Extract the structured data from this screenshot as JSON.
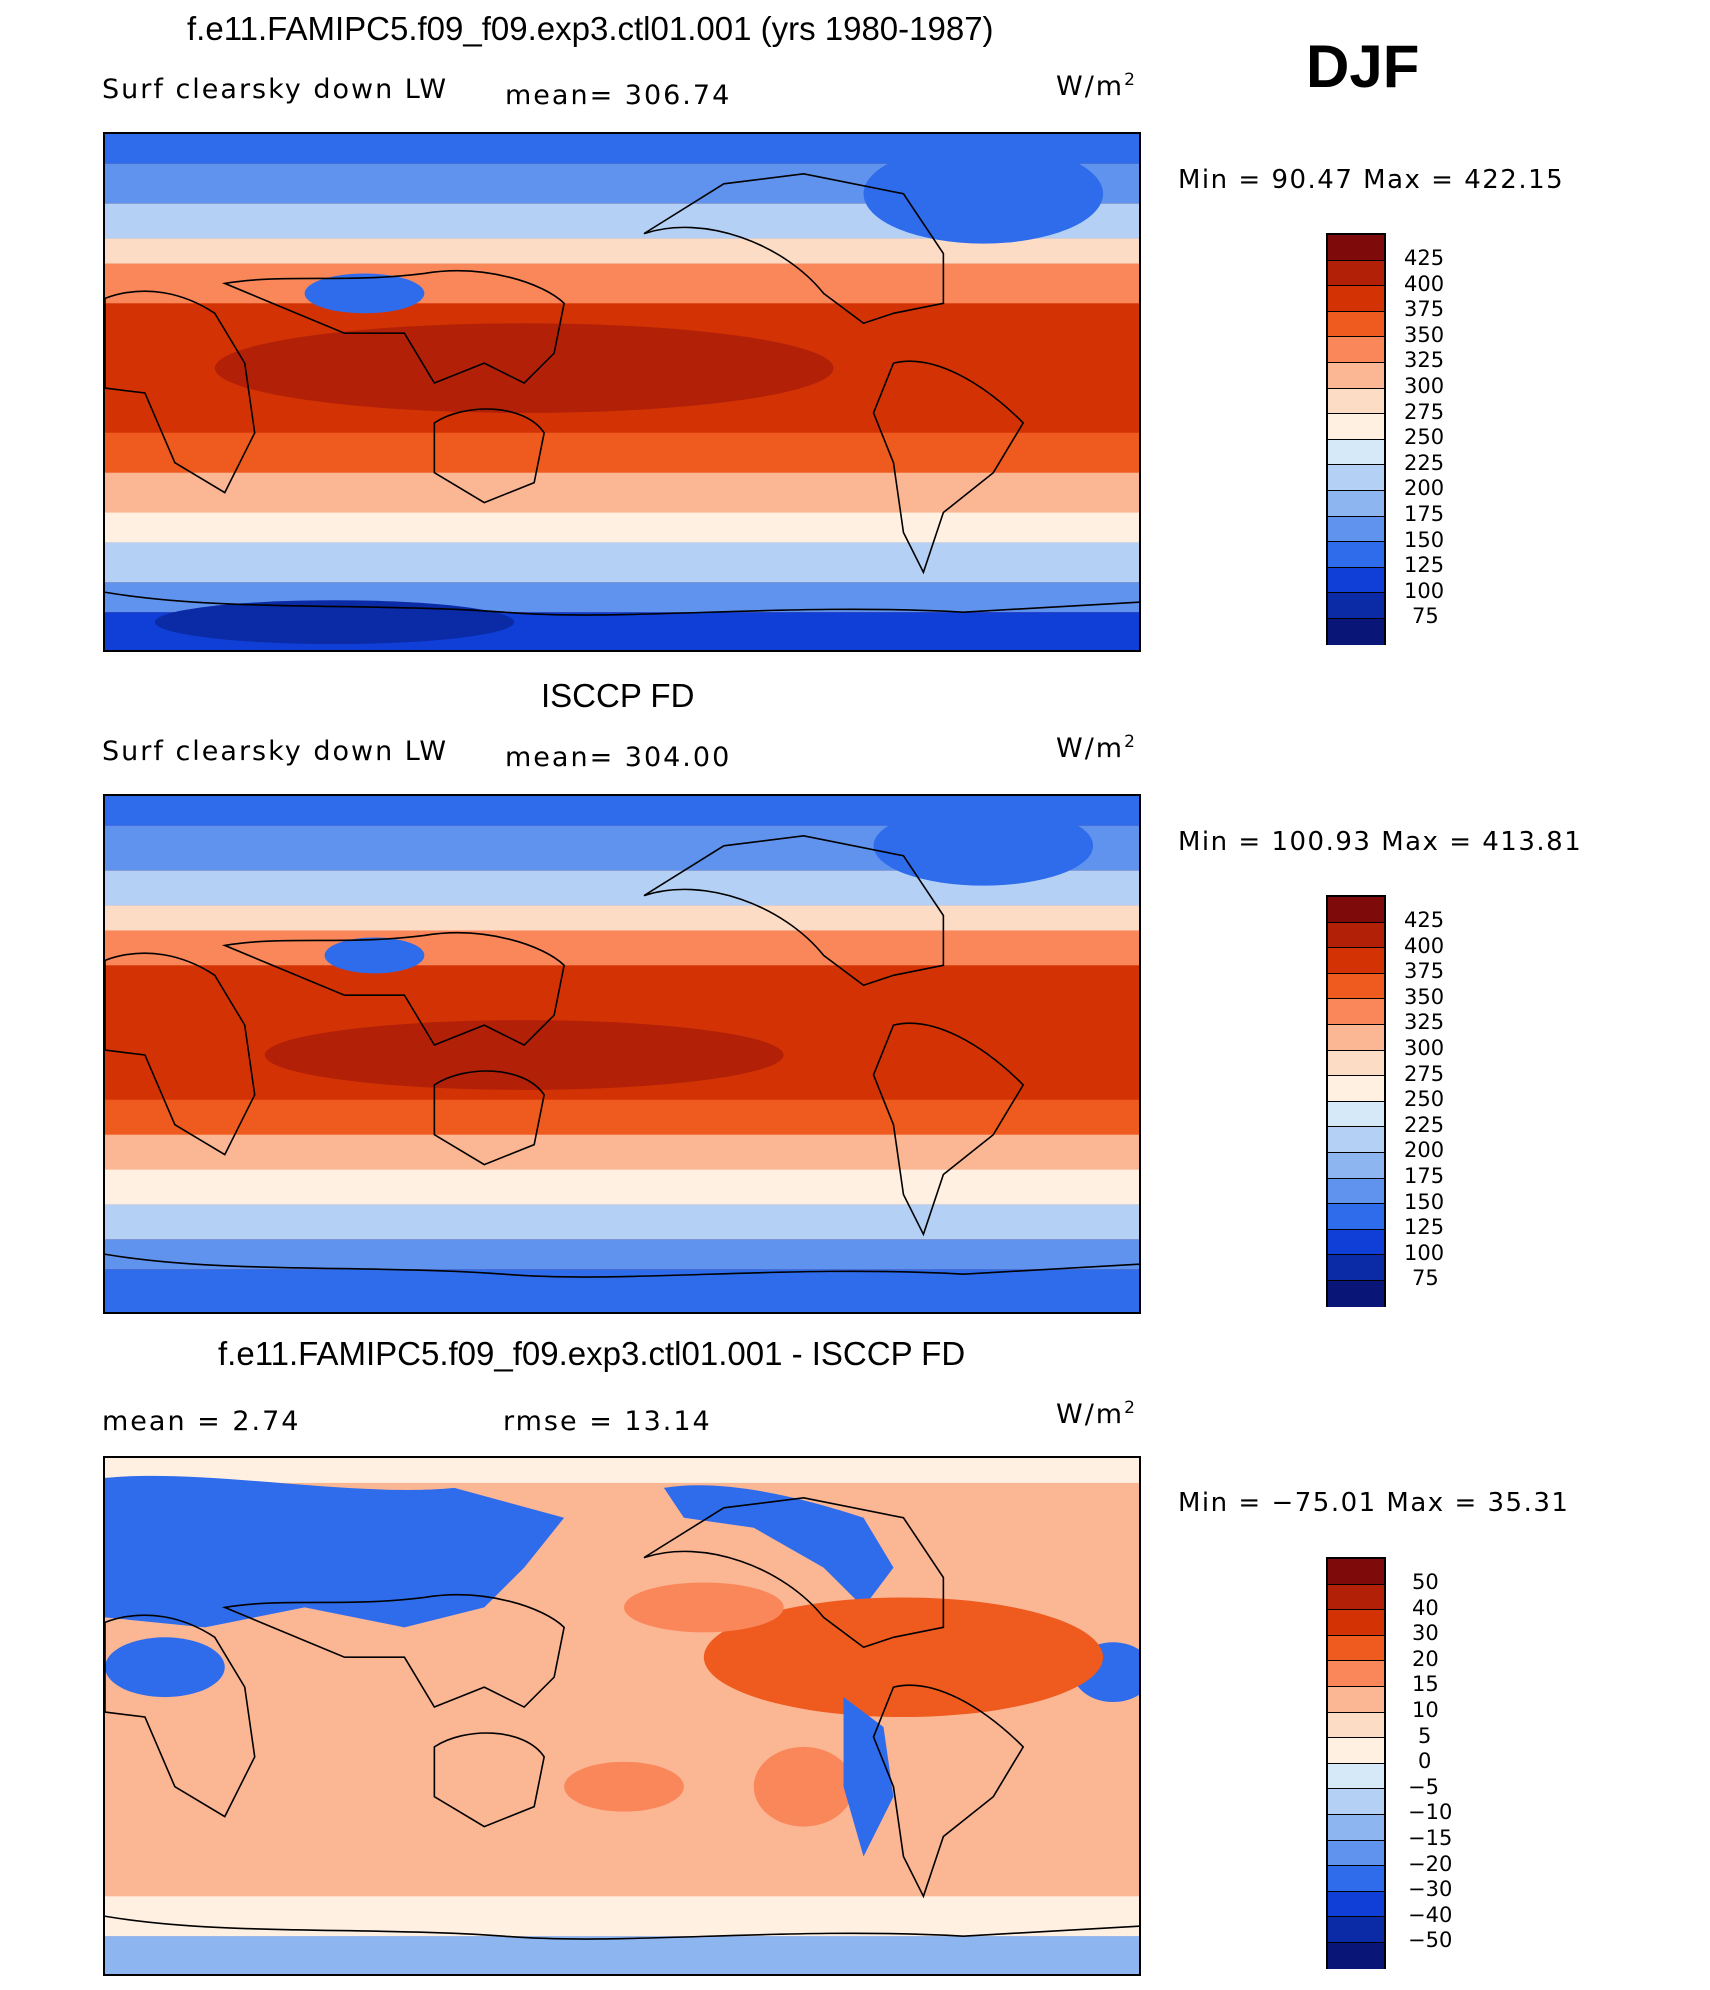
{
  "season": "DJF",
  "panels": [
    {
      "id": "model",
      "title": "f.e11.FAMIPC5.f09_f09.exp3.ctl01.001 (yrs 1980-1987)",
      "left_label": "Surf clearsky down LW",
      "mid_label": "mean=  306.74",
      "units": "W/m",
      "units_sup": "2",
      "minmax": "Min =   90.47 Max = 422.15",
      "colorbar_labels": [
        "425",
        "400",
        "375",
        "350",
        "325",
        "300",
        "275",
        "250",
        "225",
        "200",
        "175",
        "150",
        "125",
        "100",
        "75"
      ]
    },
    {
      "id": "obs",
      "title": "ISCCP FD",
      "left_label": "Surf clearsky down LW",
      "mid_label": "mean=  304.00",
      "units": "W/m",
      "units_sup": "2",
      "minmax": "Min = 100.93 Max = 413.81",
      "colorbar_labels": [
        "425",
        "400",
        "375",
        "350",
        "325",
        "300",
        "275",
        "250",
        "225",
        "200",
        "175",
        "150",
        "125",
        "100",
        "75"
      ]
    },
    {
      "id": "diff",
      "title": "f.e11.FAMIPC5.f09_f09.exp3.ctl01.001 - ISCCP FD",
      "left_label": "mean =     2.74",
      "mid_label": "rmse =    13.14",
      "units": "W/m",
      "units_sup": "2",
      "minmax": "Min = −75.01 Max =   35.31",
      "colorbar_labels": [
        "50",
        "40",
        "30",
        "20",
        "15",
        "10",
        "5",
        "0",
        "−5",
        "−10",
        "−15",
        "−20",
        "−30",
        "−40",
        "−50"
      ]
    }
  ],
  "colors": {
    "abs_scale": [
      "#7f0a0a",
      "#b32008",
      "#d33304",
      "#ef5a1e",
      "#f9875a",
      "#fbb694",
      "#fddcc6",
      "#fff0e2",
      "#d6e9f8",
      "#b4d1f5",
      "#8db5f0",
      "#5f93ee",
      "#2f6cec",
      "#0f3fd6",
      "#0b2aa6",
      "#0a1578"
    ],
    "diff_scale": [
      "#7f0a0a",
      "#b32008",
      "#d33304",
      "#ef5a1e",
      "#f9875a",
      "#fbb694",
      "#fddcc6",
      "#fff0e2",
      "#d6e9f8",
      "#b4d1f5",
      "#8db5f0",
      "#5f93ee",
      "#2f6cec",
      "#0f3fd6",
      "#0b2aa6",
      "#0a1578"
    ]
  }
}
